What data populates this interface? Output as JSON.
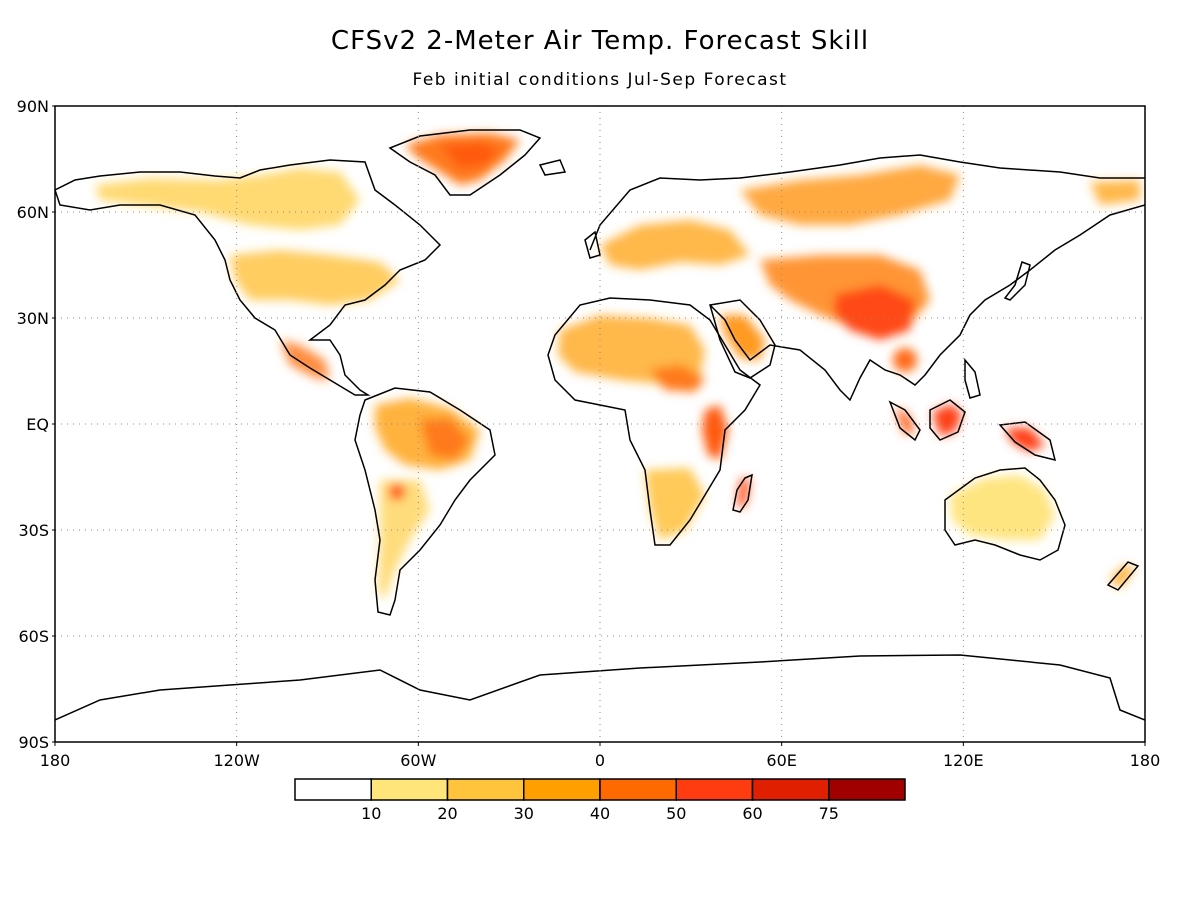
{
  "title": "CFSv2 2-Meter Air Temp. Forecast Skill",
  "subtitle": "Feb initial conditions   Jul-Sep Forecast",
  "map": {
    "projection": "cylindrical equidistant",
    "lon_range": [
      -180,
      180
    ],
    "lat_range": [
      -90,
      90
    ],
    "grid": "dotted",
    "lat_labels": [
      "90N",
      "60N",
      "30N",
      "EQ",
      "30S",
      "60S",
      "90S"
    ],
    "lon_labels": [
      "180",
      "120W",
      "60W",
      "0",
      "60E",
      "120E",
      "180"
    ]
  },
  "colorbar": {
    "labels": [
      "10",
      "20",
      "30",
      "40",
      "50",
      "60",
      "75"
    ],
    "colors": [
      "#ffffff",
      "#ffe57a",
      "#ffc43c",
      "#ffa000",
      "#ff6a00",
      "#ff3c10",
      "#e01e00",
      "#a00000"
    ]
  },
  "chart_data": {
    "type": "heatmap",
    "title": "CFSv2 2-Meter Air Temp. Forecast Skill",
    "subtitle": "Feb initial conditions   Jul-Sep Forecast",
    "xlim": [
      -180,
      180
    ],
    "ylim": [
      -90,
      90
    ],
    "levels": [
      10,
      20,
      30,
      40,
      50,
      60,
      75
    ],
    "approx_skill_regions": [
      {
        "lon": -45,
        "lat": 72,
        "value": 50
      },
      {
        "lon": 95,
        "lat": 30,
        "value": 55
      },
      {
        "lon": 115,
        "lat": 0,
        "value": 60
      },
      {
        "lon": 47,
        "lat": -20,
        "value": 55
      },
      {
        "lon": 38,
        "lat": 0,
        "value": 50
      },
      {
        "lon": -55,
        "lat": -5,
        "value": 40
      },
      {
        "lon": -65,
        "lat": -22,
        "value": 50
      },
      {
        "lon": -100,
        "lat": 20,
        "value": 50
      },
      {
        "lon": 45,
        "lat": 15,
        "value": 50
      },
      {
        "lon": 140,
        "lat": -5,
        "value": 55
      }
    ]
  }
}
